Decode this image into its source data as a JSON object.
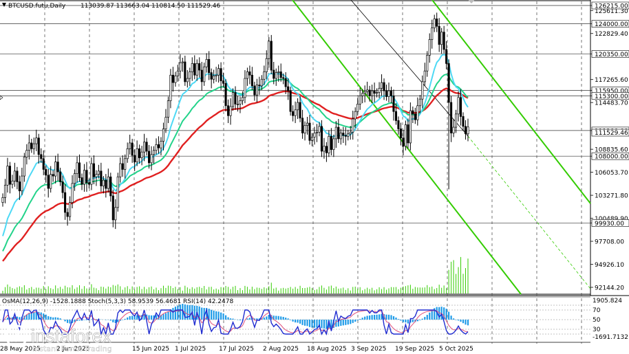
{
  "header": {
    "symbol": "BTCUSD.futu,Daily",
    "ohlc": "113039.87 113663.04 110814.50 111529.46"
  },
  "indicator_header": "OsMA(12,26,9) -1528.1888   Stoch(5,3,3) 58.9539 56.4681   RSI(14) 42.2478",
  "logo": {
    "name": "instaforex",
    "tagline": "Instant Forex Trading"
  },
  "colors": {
    "ema_fast": "#4dd9f5",
    "ema_mid": "#22d38a",
    "ema_slow": "#e02020",
    "channel": "#33cc00",
    "trendline": "#000000",
    "candle": "#000000",
    "volume": "#33cc00",
    "osma": "#1e9be8",
    "stoch_main": "#1f2bd0",
    "stoch_signal": "#e0507a"
  },
  "chart_data": {
    "type": "candlestick",
    "title": "BTCUSD.futu,Daily",
    "ylim": [
      91100,
      127300
    ],
    "y_ticks": [
      "126215.00",
      "125611.30",
      "124000.00",
      "122829.40",
      "120350.00",
      "117265.60",
      "115950.00",
      "115300.00",
      "114483.70",
      "111100.00",
      "108835.60",
      "108000.00",
      "106053.70",
      "103271.80",
      "100489.90",
      "99930.00",
      "97708.00",
      "94926.10",
      "92144.20"
    ],
    "y_tick_values": [
      126215,
      125611.3,
      124000,
      122829.4,
      120350,
      117265.6,
      115950,
      115300,
      114483.7,
      111100,
      108835.6,
      108000,
      106053.7,
      103271.8,
      100489.9,
      99930,
      97708,
      94926.1,
      92144.2
    ],
    "levels": [
      126215,
      124000,
      120350,
      115950,
      115300,
      111100,
      108000,
      99930
    ],
    "level_labels": [
      "126215.00",
      "124000.00",
      "120350.00",
      "115950.00",
      "115300.00",
      "111100.00",
      "108000.00",
      "99930.00"
    ],
    "last_price_label": "111529.46",
    "x_labels": [
      "28 May 2025",
      "2 Jun 2025",
      "15 Jun 2025",
      "1 Jul 2025",
      "17 Jul 2025",
      "2 Aug 2025",
      "18 Aug 2025",
      "3 Sep 2025",
      "19 Sep 2025",
      "5 Oct 2025"
    ],
    "close": [
      103000,
      104500,
      106800,
      104600,
      105000,
      106200,
      104900,
      103800,
      105600,
      107900,
      108700,
      109600,
      108900,
      109500,
      110200,
      108200,
      107700,
      106400,
      105700,
      104100,
      105800,
      105600,
      107300,
      106100,
      104900,
      103600,
      101200,
      100700,
      102400,
      104700,
      105900,
      107200,
      105400,
      104600,
      106300,
      104800,
      104600,
      107100,
      105500,
      105800,
      106200,
      104400,
      105100,
      104100,
      105500,
      103200,
      100300,
      101800,
      105500,
      107100,
      106400,
      107700,
      108900,
      109600,
      108100,
      107300,
      108900,
      107800,
      108500,
      109700,
      108600,
      107200,
      108200,
      108700,
      109400,
      109000,
      109800,
      111300,
      112700,
      114700,
      117800,
      116900,
      117700,
      118300,
      119300,
      119400,
      117000,
      117400,
      118200,
      119200,
      117800,
      119200,
      118400,
      117000,
      118800,
      119700,
      118100,
      117300,
      117700,
      117800,
      118600,
      117100,
      116800,
      114100,
      112900,
      114000,
      115700,
      114300,
      114300,
      114700,
      115100,
      117400,
      118200,
      117800,
      116500,
      115400,
      116600,
      116500,
      117300,
      118200,
      119800,
      121900,
      118400,
      117400,
      118100,
      118200,
      117500,
      117400,
      116400,
      115900,
      113400,
      112900,
      113600,
      114500,
      112600,
      110800,
      111700,
      112000,
      109900,
      110300,
      110800,
      110900,
      111600,
      108600,
      109200,
      108400,
      110400,
      108800,
      110100,
      111500,
      110100,
      110800,
      110500,
      110400,
      110700,
      110900,
      112500,
      113400,
      114300,
      115300,
      115600,
      115800,
      116000,
      115300,
      115900,
      115600,
      115700,
      116200,
      116900,
      115900,
      115200,
      115900,
      115300,
      113400,
      112300,
      111300,
      110200,
      109200,
      111800,
      109600,
      113500,
      113100,
      112400,
      114100,
      114900,
      117000,
      118300,
      120200,
      122100,
      123500,
      124600,
      123700,
      121500,
      123000,
      120900,
      119200,
      114500,
      110800,
      111500,
      113100,
      115100,
      112800,
      111600,
      110700,
      111530
    ]
  }
}
